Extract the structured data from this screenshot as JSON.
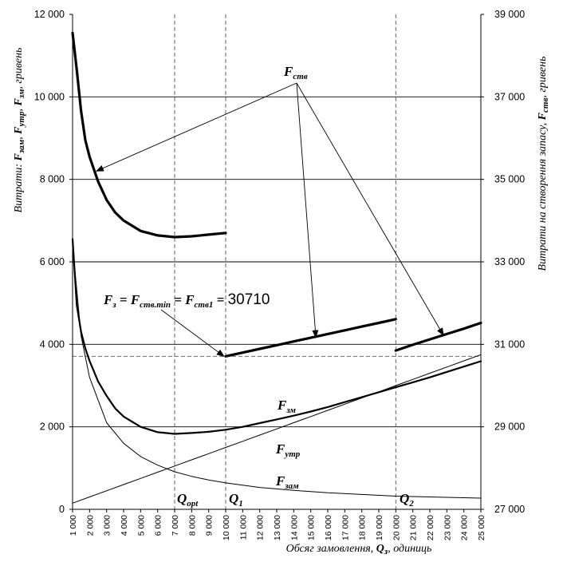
{
  "chart_data": {
    "type": "line",
    "x": [
      1000,
      2000,
      3000,
      4000,
      5000,
      6000,
      7000,
      8000,
      9000,
      10000,
      11000,
      12000,
      13000,
      14000,
      15000,
      16000,
      17000,
      18000,
      19000,
      20000,
      21000,
      22000,
      23000,
      24000,
      25000
    ],
    "x_ticks": [
      "1 000",
      "2 000",
      "3 000",
      "4 000",
      "5 000",
      "6 000",
      "7 000",
      "8 000",
      "9 000",
      "10 000",
      "11 000",
      "12 000",
      "13 000",
      "14 000",
      "15 000",
      "16 000",
      "17 000",
      "18 000",
      "19 000",
      "20 000",
      "21 000",
      "22 000",
      "23 000",
      "24 000",
      "25 000"
    ],
    "xlim": [
      1000,
      25000
    ],
    "ylim_left": [
      0,
      12000
    ],
    "ylim_right": [
      27000,
      39000
    ],
    "y_ticks_left": [
      "0",
      "2 000",
      "4 000",
      "6 000",
      "8 000",
      "10 000",
      "12 000"
    ],
    "y_ticks_right": [
      "27 000",
      "29 000",
      "31 000",
      "33 000",
      "35 000",
      "37 000",
      "39 000"
    ],
    "grid": "horizontal",
    "xlabel": {
      "text": "Обсяг замовлення, ",
      "sym": "Q",
      "sub": "з",
      "tail": ", одиниць"
    },
    "ylabel_left": {
      "text": "Витрати:  ",
      "p1": "F",
      "s1": "зам",
      "p2": "F",
      "s2": "утр",
      "p3": "F",
      "s3": "зм",
      "tail": ",  гривень"
    },
    "ylabel_right": {
      "text": "Витрати на створення запасу,  ",
      "p": "F",
      "s": "ств",
      "tail": ",  гривень"
    },
    "series": [
      {
        "axis": "left",
        "values": [
          150,
          300,
          450,
          600,
          750,
          900,
          1050,
          1200,
          1350,
          1500,
          1650,
          1800,
          1950,
          2100,
          2250,
          2400,
          2550,
          2700,
          2850,
          3000,
          3150,
          3300,
          3450,
          3600,
          3750
        ]
      },
      {
        "axis": "left",
        "x": [
          1000,
          1500,
          2000,
          3000,
          4000,
          5000,
          6000,
          7000,
          8000,
          9000,
          10000,
          12000,
          14000,
          16000,
          18000,
          20000,
          21000,
          22000,
          23000,
          24000,
          25000
        ],
        "values": [
          6400,
          4200,
          3200,
          2100,
          1600,
          1280,
          1070,
          910,
          800,
          710,
          640,
          530,
          460,
          400,
          360,
          320,
          310,
          300,
          290,
          280,
          270
        ]
      },
      {
        "axis": "left",
        "x": [
          1000,
          1250,
          1500,
          1750,
          2000,
          2500,
          3000,
          3500,
          4000,
          5000,
          6000,
          7000,
          8000,
          9000,
          10000,
          11000,
          12000,
          13000,
          14000,
          15000,
          16000,
          17000,
          18000,
          19000,
          20000,
          21000,
          22000,
          23000,
          24000,
          25000
        ],
        "values": [
          6550,
          4950,
          4300,
          3900,
          3600,
          3100,
          2750,
          2450,
          2250,
          2000,
          1870,
          1830,
          1850,
          1880,
          1930,
          2000,
          2090,
          2180,
          2270,
          2370,
          2480,
          2600,
          2720,
          2840,
          2960,
          3080,
          3200,
          3330,
          3460,
          3590
        ]
      },
      {
        "axis": "right",
        "x": [
          1000,
          1250,
          1500,
          1750,
          2000,
          2500,
          3000,
          3500,
          4000,
          5000,
          6000,
          7000,
          8000,
          9000,
          10000
        ],
        "values": [
          38550,
          37650,
          36650,
          35950,
          35550,
          34950,
          34500,
          34200,
          34000,
          33750,
          33640,
          33600,
          33620,
          33660,
          33700
        ]
      },
      {
        "axis": "right",
        "x": [
          10000,
          11000,
          12000,
          13000,
          14000,
          15000,
          16000,
          17000,
          18000,
          19000,
          20000
        ],
        "values": [
          30710,
          30800,
          30890,
          30980,
          31070,
          31160,
          31250,
          31340,
          31430,
          31520,
          31610
        ]
      },
      {
        "axis": "right",
        "x": [
          20000,
          21000,
          22000,
          23000,
          24000,
          25000
        ],
        "values": [
          30850,
          30990,
          31120,
          31250,
          31380,
          31520
        ]
      }
    ],
    "reference": {
      "vertical_x": [
        7000,
        10000,
        20000
      ],
      "horizontal_right": 30710
    },
    "annotations": {
      "fstv_label": {
        "p": "F",
        "s": "ств"
      },
      "fzm_label": {
        "p": "F",
        "s": "зм"
      },
      "futr_label": {
        "p": "F",
        "s": "утр"
      },
      "fzam_label": {
        "p": "F",
        "s": "зам"
      },
      "q_opt": {
        "p": "Q",
        "s": "opt"
      },
      "q1": {
        "p": "Q",
        "s": "1"
      },
      "q2": {
        "p": "Q",
        "s": "2"
      },
      "equation": {
        "a": "F",
        "as": "з",
        "eq1": " = ",
        "b": "F",
        "bs": "ств.min",
        "eq2": " = ",
        "c": "F",
        "cs": "ств1",
        "eq3": " = ",
        "num": "30710"
      }
    }
  }
}
